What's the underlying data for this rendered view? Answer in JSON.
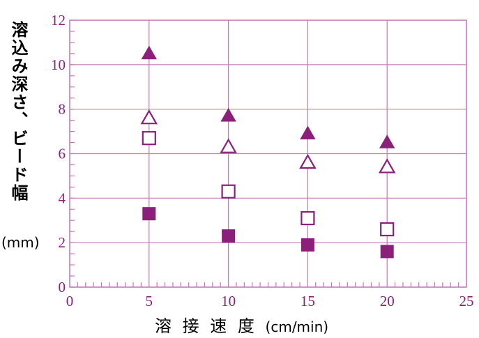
{
  "chart_data": {
    "type": "scatter",
    "title": "",
    "ylabel": "溶込み深さ、ビード幅",
    "ylabel_unit": "(mm)",
    "xlabel": "溶 接 速 度",
    "xlabel_unit": "(cm/min)",
    "xlim": [
      0,
      25
    ],
    "ylim": [
      0,
      12
    ],
    "xticks": [
      0,
      5,
      10,
      15,
      20,
      25
    ],
    "yticks": [
      0,
      2,
      4,
      6,
      8,
      10,
      12
    ],
    "grid": true,
    "legend": "none",
    "colors": {
      "accent": "#8b1f7a",
      "grid": "#c27bb7"
    },
    "series": [
      {
        "marker": "filled-triangle",
        "x": [
          5,
          10,
          15,
          20
        ],
        "values": [
          10.5,
          7.7,
          6.9,
          6.5
        ]
      },
      {
        "marker": "open-triangle",
        "x": [
          5,
          10,
          15,
          20
        ],
        "values": [
          7.6,
          6.3,
          5.6,
          5.4
        ]
      },
      {
        "marker": "open-square",
        "x": [
          5,
          10,
          15,
          20
        ],
        "values": [
          6.7,
          4.3,
          3.1,
          2.6
        ]
      },
      {
        "marker": "filled-square",
        "x": [
          5,
          10,
          15,
          20
        ],
        "values": [
          3.3,
          2.3,
          1.9,
          1.6
        ]
      }
    ]
  }
}
